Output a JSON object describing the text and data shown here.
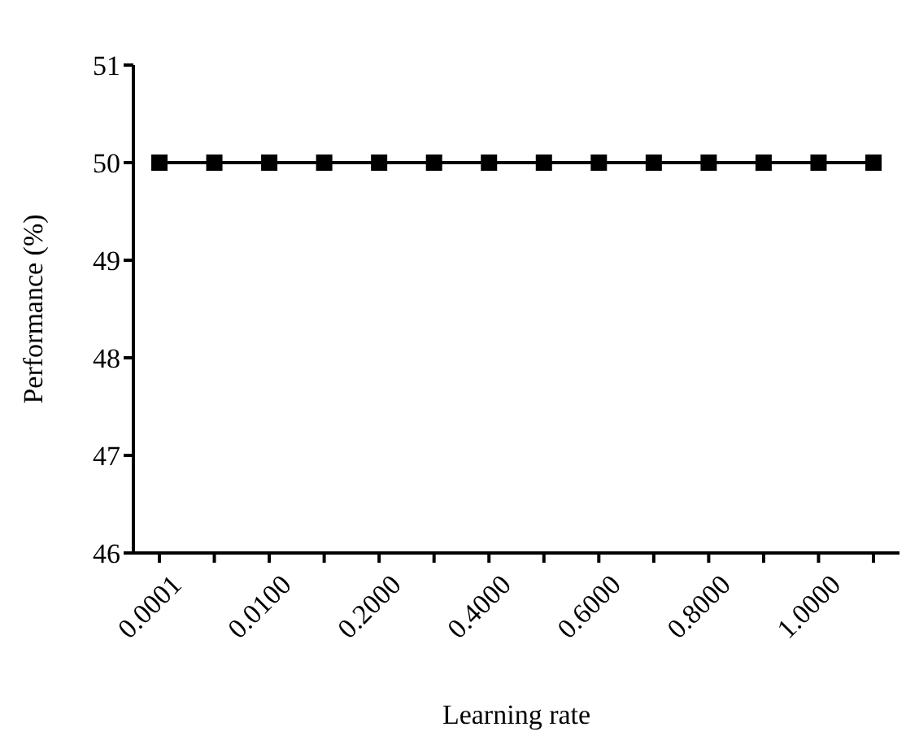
{
  "chart_data": {
    "type": "line",
    "xlabel": "Learning rate",
    "ylabel": "Performance (%)",
    "categories": [
      "0.0001",
      null,
      "0.0100",
      null,
      "0.2000",
      null,
      "0.4000",
      null,
      "0.6000",
      null,
      "0.8000",
      null,
      "1.0000",
      null
    ],
    "series": [
      {
        "color": "#000000",
        "values": [
          50,
          50,
          50,
          50,
          50,
          50,
          50,
          50,
          50,
          50,
          50,
          50,
          50,
          50
        ]
      }
    ],
    "ylim": [
      46,
      51
    ],
    "yticks": [
      46,
      47,
      48,
      49,
      50,
      51
    ],
    "grid": false,
    "legend": false,
    "marker": "square",
    "line_style": "solid"
  }
}
